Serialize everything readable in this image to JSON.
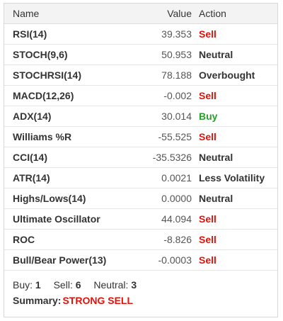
{
  "headers": {
    "name": "Name",
    "value": "Value",
    "action": "Action"
  },
  "rows": [
    {
      "name": "RSI(14)",
      "value": "39.353",
      "action": "Sell"
    },
    {
      "name": "STOCH(9,6)",
      "value": "50.953",
      "action": "Neutral"
    },
    {
      "name": "STOCHRSI(14)",
      "value": "78.188",
      "action": "Overbought"
    },
    {
      "name": "MACD(12,26)",
      "value": "-0.002",
      "action": "Sell"
    },
    {
      "name": "ADX(14)",
      "value": "30.014",
      "action": "Buy"
    },
    {
      "name": "Williams %R",
      "value": "-55.525",
      "action": "Sell"
    },
    {
      "name": "CCI(14)",
      "value": "-35.5326",
      "action": "Neutral"
    },
    {
      "name": "ATR(14)",
      "value": "0.0021",
      "action": "Less Volatility"
    },
    {
      "name": "Highs/Lows(14)",
      "value": "0.0000",
      "action": "Neutral"
    },
    {
      "name": "Ultimate Oscillator",
      "value": "44.094",
      "action": "Sell"
    },
    {
      "name": "ROC",
      "value": "-8.826",
      "action": "Sell"
    },
    {
      "name": "Bull/Bear Power(13)",
      "value": "-0.0003",
      "action": "Sell"
    }
  ],
  "counts": {
    "buy_label": "Buy:",
    "buy": "1",
    "sell_label": "Sell:",
    "sell": "6",
    "neutral_label": "Neutral:",
    "neutral": "3"
  },
  "summary": {
    "label": "Summary:",
    "value": "STRONG SELL"
  },
  "colors": {
    "sell": "#e3120b",
    "buy": "#2aa02a",
    "neutral": "#333333",
    "header_bg": "#f3f3f3"
  }
}
